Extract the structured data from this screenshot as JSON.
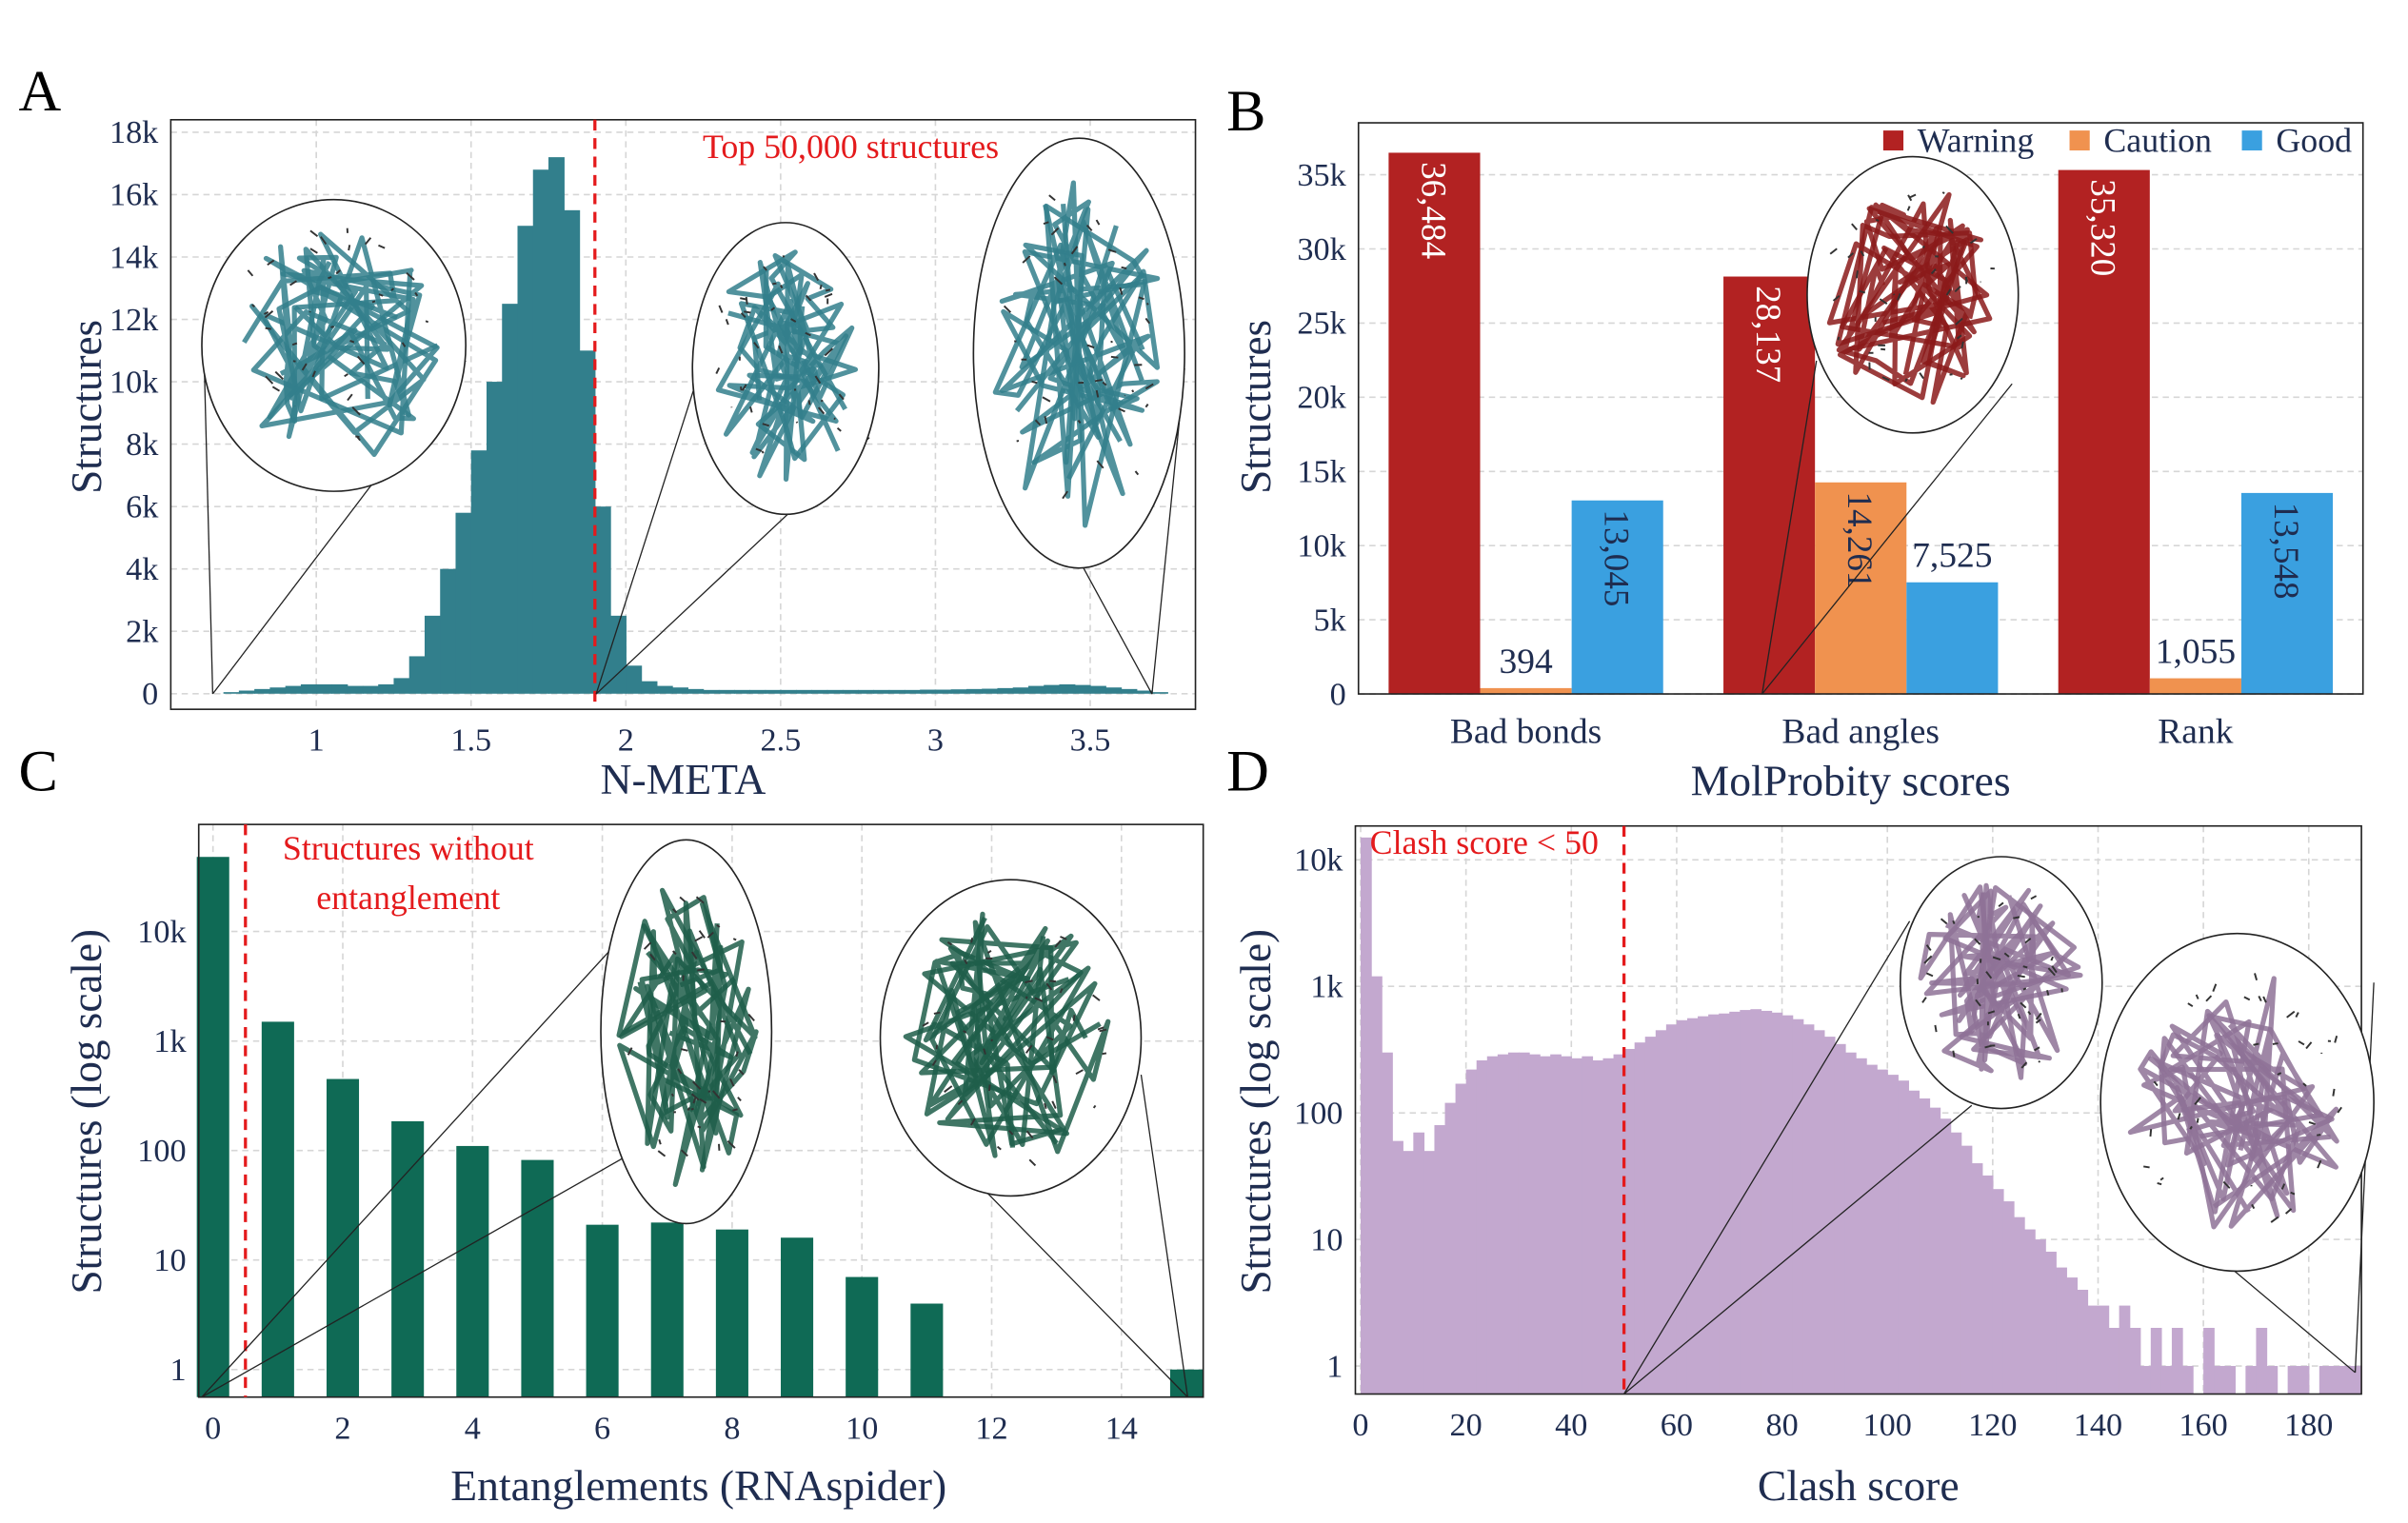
{
  "chart_data": [
    {
      "type": "histogram",
      "panel_label": "A",
      "xlabel": "N-META",
      "ylabel": "Structures",
      "annotation": "Top 50,000 structures",
      "threshold": 1.9,
      "color": "#327f8c",
      "grid": true,
      "bins": [
        0.65,
        0.7,
        0.75,
        0.8,
        0.85,
        0.9,
        0.95,
        1,
        1.05,
        1.1,
        1.15,
        1.2,
        1.25,
        1.3,
        1.35,
        1.4,
        1.45,
        1.5,
        1.55,
        1.6,
        1.65,
        1.7,
        1.75,
        1.8,
        1.85,
        1.9,
        1.95,
        2,
        2.05,
        2.1,
        2.15,
        2.2,
        2.25,
        2.3,
        2.35,
        2.4,
        2.45,
        2.5,
        2.55,
        2.6,
        2.65,
        2.7,
        2.75,
        2.8,
        2.85,
        2.9,
        2.95,
        3,
        3.05,
        3.1,
        3.15,
        3.2,
        3.25,
        3.3,
        3.35,
        3.4,
        3.45,
        3.5,
        3.55,
        3.6,
        3.65,
        3.7,
        3.75
      ],
      "counts": [
        0,
        50,
        100,
        150,
        200,
        250,
        300,
        300,
        300,
        250,
        250,
        300,
        500,
        1200,
        2500,
        4000,
        5800,
        7800,
        10000,
        12500,
        15000,
        16800,
        17200,
        15500,
        11000,
        6000,
        2500,
        900,
        400,
        250,
        200,
        150,
        120,
        120,
        120,
        120,
        120,
        120,
        120,
        120,
        120,
        120,
        120,
        120,
        120,
        120,
        130,
        130,
        140,
        150,
        160,
        180,
        200,
        250,
        280,
        300,
        280,
        250,
        200,
        150,
        100,
        50
      ],
      "xlim": [
        0.53,
        3.84
      ],
      "xticks": [
        1,
        1.5,
        2,
        2.5,
        3,
        3.5
      ],
      "ylim": [
        -500,
        18400
      ],
      "yticks": [
        0,
        {
          "value": 2000,
          "label": "2k"
        },
        {
          "value": 4000,
          "label": "4k"
        },
        {
          "value": 6000,
          "label": "6k"
        },
        {
          "value": 8000,
          "label": "8k"
        },
        {
          "value": 10000,
          "label": "10k"
        },
        {
          "value": 12000,
          "label": "12k"
        },
        {
          "value": 14000,
          "label": "14k"
        },
        {
          "value": 16000,
          "label": "16k"
        },
        {
          "value": 18000,
          "label": "18k"
        }
      ]
    },
    {
      "type": "grouped_bar",
      "panel_label": "B",
      "xlabel": "MolProbity scores",
      "ylabel": "Structures",
      "grid": true,
      "legend": "upper right",
      "categories": [
        "Bad bonds",
        "Bad angles",
        "Rank"
      ],
      "series": [
        {
          "name": "Warning",
          "color": "#b22222",
          "values": [
            36484,
            28137,
            35320
          ],
          "value_labels": [
            "36,484",
            "28,137",
            "35,320"
          ]
        },
        {
          "name": "Caution",
          "color": "#f0924f",
          "values": [
            394,
            14261,
            1055
          ],
          "value_labels": [
            "394",
            "14,261",
            "1,055"
          ]
        },
        {
          "name": "Good",
          "color": "#3aa0e0",
          "values": [
            13045,
            7525,
            13548
          ],
          "value_labels": [
            "13,045",
            "7,525",
            "13,548"
          ]
        }
      ],
      "ylim": [
        0,
        38500
      ],
      "yticks": [
        0,
        {
          "value": 5000,
          "label": "5k"
        },
        {
          "value": 10000,
          "label": "10k"
        },
        {
          "value": 15000,
          "label": "15k"
        },
        {
          "value": 20000,
          "label": "20k"
        },
        {
          "value": 25000,
          "label": "25k"
        },
        {
          "value": 30000,
          "label": "30k"
        },
        {
          "value": 35000,
          "label": "35k"
        }
      ]
    },
    {
      "type": "bar",
      "panel_label": "C",
      "xlabel": "Entanglements (RNAspider)",
      "ylabel": "Structures (log scale)",
      "annotation": [
        "Structures without",
        "entanglement"
      ],
      "threshold": 0.5,
      "color": "#0f6a55",
      "grid": true,
      "log_y": true,
      "x": [
        0,
        1,
        2,
        3,
        4,
        5,
        6,
        7,
        8,
        9,
        10,
        11,
        15
      ],
      "values": [
        48000,
        1500,
        450,
        185,
        110,
        82,
        21,
        22,
        19,
        16,
        7,
        4,
        1
      ],
      "xlim": [
        -0.22,
        15.26
      ],
      "xticks": [
        0,
        2,
        4,
        6,
        8,
        10,
        12,
        14
      ],
      "ylim": [
        0.56,
        95000
      ],
      "yticks": [
        1,
        10,
        100,
        {
          "value": 1000,
          "label": "1k"
        },
        {
          "value": 10000,
          "label": "10k"
        }
      ]
    },
    {
      "type": "histogram",
      "panel_label": "D",
      "xlabel": "Clash score",
      "ylabel": "Structures (log scale)",
      "annotation": "Clash score < 50",
      "threshold": 50,
      "color": "#c3a8cf",
      "grid": true,
      "log_y": true,
      "bins": [
        0,
        2,
        4,
        6,
        8,
        10,
        12,
        14,
        16,
        18,
        20,
        22,
        24,
        26,
        28,
        30,
        32,
        34,
        36,
        38,
        40,
        42,
        44,
        46,
        48,
        50,
        52,
        54,
        56,
        58,
        60,
        62,
        64,
        66,
        68,
        70,
        72,
        74,
        76,
        78,
        80,
        82,
        84,
        86,
        88,
        90,
        92,
        94,
        96,
        98,
        100,
        102,
        104,
        106,
        108,
        110,
        112,
        114,
        116,
        118,
        120,
        122,
        124,
        126,
        128,
        130,
        132,
        134,
        136,
        138,
        140,
        142,
        144,
        146,
        148,
        150,
        152,
        154,
        156,
        158,
        160,
        162,
        164,
        166,
        168,
        170,
        172,
        174,
        176,
        178,
        180,
        182,
        184,
        186,
        188,
        190
      ],
      "counts": [
        15000,
        1200,
        300,
        60,
        50,
        70,
        50,
        80,
        120,
        170,
        220,
        260,
        280,
        290,
        300,
        300,
        290,
        280,
        290,
        280,
        270,
        280,
        260,
        270,
        290,
        320,
        360,
        400,
        450,
        500,
        540,
        560,
        580,
        600,
        610,
        630,
        650,
        660,
        640,
        620,
        590,
        550,
        500,
        450,
        400,
        350,
        300,
        270,
        240,
        220,
        200,
        180,
        150,
        130,
        110,
        90,
        70,
        55,
        40,
        32,
        25,
        20,
        15,
        12,
        10,
        8,
        6,
        5,
        4,
        3,
        3,
        2,
        3,
        2,
        1,
        2,
        1,
        2,
        1,
        0,
        2,
        1,
        1,
        0,
        1,
        2,
        1,
        0,
        1,
        1,
        0,
        1,
        1,
        1,
        1
      ],
      "xlim": [
        -1,
        190
      ],
      "xticks": [
        0,
        20,
        40,
        60,
        80,
        100,
        120,
        140,
        160,
        180
      ],
      "ylim": [
        0.6,
        18500
      ],
      "yticks": [
        1,
        10,
        100,
        {
          "value": 1000,
          "label": "1k"
        },
        {
          "value": 10000,
          "label": "10k"
        }
      ]
    }
  ]
}
